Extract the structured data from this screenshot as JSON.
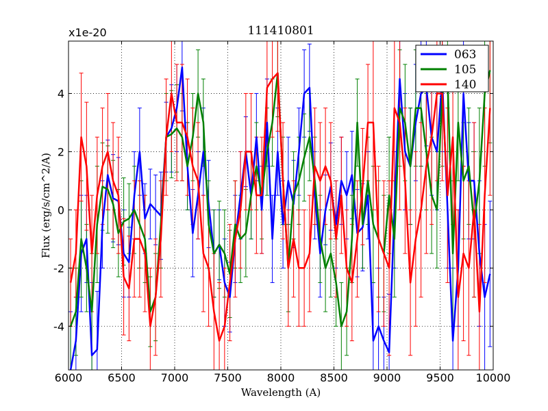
{
  "chart_data": {
    "type": "line",
    "title": "111410801",
    "xlabel": "Wavelength (A)",
    "ylabel": "Flux (erg/s/cm^2/A)",
    "offset_label": "x1e-20",
    "xlim": [
      6000,
      10000
    ],
    "ylim": [
      -5.5,
      5.8
    ],
    "xticks": [
      6000,
      6500,
      7000,
      7500,
      8000,
      8500,
      9000,
      9500,
      10000
    ],
    "yticks": [
      -4,
      -2,
      0,
      2,
      4
    ],
    "grid": true,
    "legend_position": "top-right",
    "series": [
      {
        "name": "063",
        "color": "#0000ff",
        "x": [
          6020,
          6070,
          6120,
          6170,
          6220,
          6270,
          6320,
          6370,
          6420,
          6470,
          6520,
          6570,
          6620,
          6670,
          6720,
          6770,
          6820,
          6870,
          6920,
          6970,
          7020,
          7070,
          7120,
          7170,
          7220,
          7270,
          7320,
          7370,
          7420,
          7470,
          7520,
          7570,
          7620,
          7670,
          7720,
          7770,
          7820,
          7870,
          7920,
          7970,
          8020,
          8070,
          8120,
          8170,
          8220,
          8270,
          8320,
          8370,
          8420,
          8470,
          8520,
          8570,
          8620,
          8670,
          8720,
          8770,
          8820,
          8870,
          8920,
          8970,
          9020,
          9070,
          9120,
          9170,
          9220,
          9270,
          9320,
          9370,
          9420,
          9470,
          9520,
          9570,
          9620,
          9670,
          9720,
          9770,
          9820,
          9870,
          9920,
          9970
        ],
        "y": [
          -5.5,
          -4.5,
          -1.5,
          -1.0,
          -5.0,
          -4.8,
          -0.5,
          1.2,
          0.4,
          0.3,
          -1.5,
          -1.8,
          0.5,
          2.0,
          -0.3,
          0.2,
          0.0,
          -0.2,
          2.5,
          2.8,
          3.5,
          4.9,
          1.5,
          -0.8,
          0.5,
          2.0,
          0.2,
          -1.5,
          -1.2,
          -2.5,
          -3.0,
          -1.0,
          0.5,
          2.0,
          0.5,
          2.5,
          0.0,
          3.0,
          -1.0,
          2.0,
          -0.5,
          1.0,
          0.2,
          2.0,
          4.0,
          4.2,
          0.5,
          -1.5,
          0.0,
          0.8,
          -0.5,
          1.0,
          0.5,
          1.2,
          -0.8,
          -0.6,
          0.5,
          -4.5,
          -4.0,
          -4.5,
          -4.9,
          0.0,
          4.5,
          2.0,
          1.5,
          3.0,
          4.0,
          4.2,
          2.5,
          2.0,
          4.5,
          0.0,
          -4.5,
          -2.0,
          4.0,
          1.0,
          1.0,
          -1.5,
          -3.0,
          -2.2
        ],
        "err": [
          2.0,
          1.5,
          2.0,
          1.5,
          2.5,
          2.0,
          1.5,
          1.2,
          1.5,
          1.5,
          1.5,
          1.2,
          1.5,
          1.5,
          1.2,
          1.2,
          1.2,
          1.5,
          1.2,
          1.5,
          1.5,
          1.5,
          1.5,
          1.5,
          1.5,
          1.5,
          1.5,
          1.5,
          1.2,
          1.5,
          1.2,
          1.5,
          1.5,
          1.2,
          1.5,
          1.5,
          1.5,
          1.5,
          1.5,
          1.5,
          1.5,
          1.5,
          1.5,
          1.5,
          1.5,
          1.5,
          1.5,
          1.5,
          1.2,
          1.5,
          1.5,
          1.5,
          1.5,
          1.5,
          1.5,
          1.5,
          1.5,
          2.0,
          2.0,
          1.5,
          2.0,
          2.0,
          2.0,
          2.0,
          2.0,
          2.0,
          2.5,
          2.0,
          2.0,
          2.0,
          2.5,
          2.0,
          2.5,
          2.0,
          2.5,
          2.0,
          2.0,
          2.5,
          2.5,
          2.5
        ]
      },
      {
        "name": "105",
        "color": "#008000",
        "x": [
          6020,
          6070,
          6120,
          6170,
          6220,
          6270,
          6320,
          6370,
          6420,
          6470,
          6520,
          6570,
          6620,
          6670,
          6720,
          6770,
          6820,
          6870,
          6920,
          6970,
          7020,
          7070,
          7120,
          7170,
          7220,
          7270,
          7320,
          7370,
          7420,
          7470,
          7520,
          7570,
          7620,
          7670,
          7720,
          7770,
          7820,
          7870,
          7920,
          7970,
          8020,
          8070,
          8120,
          8170,
          8220,
          8270,
          8320,
          8370,
          8420,
          8470,
          8520,
          8570,
          8620,
          8670,
          8720,
          8770,
          8820,
          8870,
          8920,
          8970,
          9020,
          9070,
          9120,
          9170,
          9220,
          9270,
          9320,
          9370,
          9420,
          9470,
          9520,
          9570,
          9620,
          9670,
          9720,
          9770,
          9820,
          9870,
          9920,
          9970
        ],
        "y": [
          -4.0,
          -3.5,
          -1.0,
          -2.0,
          -3.5,
          -0.5,
          0.8,
          0.7,
          0.2,
          -0.8,
          -0.4,
          -0.3,
          0.0,
          -0.5,
          -1.0,
          -3.5,
          -3.0,
          -0.5,
          2.5,
          2.6,
          2.8,
          2.5,
          1.5,
          2.5,
          4.0,
          3.0,
          -0.5,
          -1.5,
          -1.2,
          -1.5,
          -2.2,
          -0.5,
          -1.0,
          -0.8,
          0.5,
          1.5,
          0.5,
          2.0,
          3.0,
          4.7,
          1.0,
          -2.0,
          0.5,
          1.0,
          1.8,
          2.5,
          1.0,
          -1.0,
          -2.0,
          -1.5,
          -2.5,
          -4.0,
          -3.5,
          -1.0,
          3.0,
          -0.5,
          1.0,
          -0.5,
          -1.0,
          -1.5,
          0.5,
          -1.0,
          3.5,
          3.0,
          1.5,
          3.5,
          3.5,
          2.0,
          0.5,
          0.0,
          4.0,
          4.5,
          -1.5,
          3.0,
          1.0,
          1.5,
          -0.5,
          1.0,
          4.0,
          4.8
        ],
        "err": [
          2.0,
          1.5,
          2.0,
          1.5,
          2.0,
          2.0,
          1.5,
          1.5,
          1.5,
          1.5,
          1.5,
          1.2,
          1.5,
          1.5,
          1.5,
          1.2,
          1.5,
          1.5,
          1.5,
          1.5,
          1.5,
          1.5,
          1.5,
          1.5,
          1.5,
          1.5,
          1.5,
          1.5,
          1.5,
          1.5,
          1.5,
          1.5,
          1.5,
          1.5,
          1.5,
          1.5,
          1.5,
          1.5,
          1.5,
          1.5,
          1.5,
          1.5,
          1.5,
          1.5,
          1.5,
          1.5,
          1.5,
          1.5,
          1.5,
          1.5,
          1.5,
          1.5,
          1.5,
          1.5,
          1.5,
          1.5,
          1.5,
          2.0,
          2.0,
          2.0,
          2.0,
          2.0,
          2.0,
          2.0,
          2.0,
          2.0,
          2.0,
          2.0,
          2.0,
          2.0,
          2.5,
          2.5,
          2.5,
          2.0,
          2.0,
          2.0,
          2.5,
          2.5,
          2.5,
          2.5
        ]
      },
      {
        "name": "140",
        "color": "#ff0000",
        "x": [
          6020,
          6070,
          6120,
          6170,
          6220,
          6270,
          6320,
          6370,
          6420,
          6470,
          6520,
          6570,
          6620,
          6670,
          6720,
          6770,
          6820,
          6870,
          6920,
          6970,
          7020,
          7070,
          7120,
          7170,
          7220,
          7270,
          7320,
          7370,
          7420,
          7470,
          7520,
          7570,
          7620,
          7670,
          7720,
          7770,
          7820,
          7870,
          7920,
          7970,
          8020,
          8070,
          8120,
          8170,
          8220,
          8270,
          8320,
          8370,
          8420,
          8470,
          8520,
          8570,
          8620,
          8670,
          8720,
          8770,
          8820,
          8870,
          8920,
          8970,
          9020,
          9070,
          9120,
          9170,
          9220,
          9270,
          9320,
          9370,
          9420,
          9470,
          9520,
          9570,
          9620,
          9670,
          9720,
          9770,
          9820,
          9870,
          9920,
          9970
        ],
        "y": [
          -2.5,
          -1.5,
          2.5,
          1.5,
          -1.5,
          0.5,
          1.5,
          2.0,
          1.0,
          0.5,
          -2.3,
          -2.7,
          -1.0,
          -1.0,
          -1.5,
          -4.0,
          -3.0,
          -1.0,
          2.5,
          4.0,
          3.0,
          3.0,
          2.5,
          1.5,
          1.0,
          -1.5,
          -2.0,
          -3.5,
          -4.5,
          -4.0,
          -2.5,
          -1.0,
          0.0,
          2.0,
          2.0,
          0.5,
          0.5,
          4.2,
          4.5,
          4.7,
          1.0,
          -2.0,
          -1.0,
          -2.0,
          -2.0,
          -1.5,
          1.5,
          1.0,
          1.5,
          1.0,
          -1.0,
          0.5,
          -2.0,
          -2.5,
          -1.0,
          0.8,
          3.0,
          3.0,
          -1.0,
          -1.5,
          -2.0,
          3.5,
          3.0,
          1.0,
          -2.5,
          -1.0,
          0.0,
          1.5,
          2.5,
          4.0,
          4.0,
          0.5,
          2.5,
          -3.0,
          -1.5,
          -2.0,
          0.0,
          -3.5,
          0.5,
          3.5
        ],
        "err": [
          1.5,
          1.5,
          2.2,
          2.2,
          2.0,
          2.0,
          2.0,
          2.0,
          2.0,
          2.0,
          2.0,
          1.8,
          2.0,
          2.0,
          2.0,
          2.0,
          2.0,
          2.0,
          2.0,
          2.0,
          2.0,
          2.0,
          2.0,
          2.0,
          2.0,
          2.0,
          2.0,
          2.0,
          2.0,
          2.0,
          2.0,
          2.0,
          2.0,
          2.0,
          2.0,
          2.0,
          2.0,
          2.0,
          2.0,
          2.0,
          2.0,
          2.0,
          2.0,
          2.0,
          2.0,
          2.0,
          2.0,
          2.0,
          2.0,
          2.0,
          2.0,
          2.0,
          2.0,
          2.0,
          2.0,
          2.0,
          2.0,
          3.0,
          2.5,
          2.5,
          3.0,
          2.5,
          3.0,
          2.5,
          2.5,
          3.0,
          3.0,
          3.0,
          3.0,
          3.0,
          3.0,
          3.0,
          3.0,
          3.0,
          3.0,
          3.0,
          3.0,
          3.0,
          3.0,
          3.0
        ]
      }
    ]
  }
}
